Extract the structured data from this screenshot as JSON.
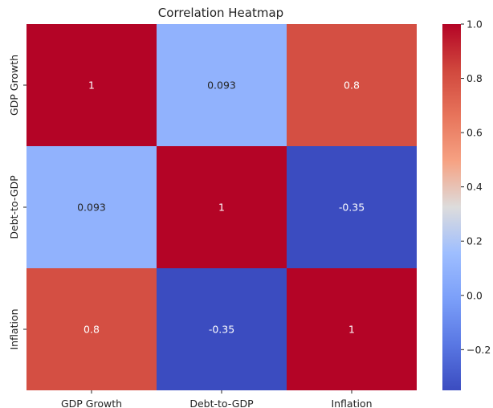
{
  "chart_data": {
    "type": "heatmap",
    "title": "Correlation Heatmap",
    "x_labels": [
      "GDP Growth",
      "Debt-to-GDP",
      "Inflation"
    ],
    "y_labels": [
      "GDP Growth",
      "Debt-to-GDP",
      "Inflation"
    ],
    "matrix": [
      [
        1,
        0.093,
        0.8
      ],
      [
        0.093,
        1,
        -0.35
      ],
      [
        0.8,
        -0.35,
        1
      ]
    ],
    "cell_text": [
      [
        "1",
        "0.093",
        "0.8"
      ],
      [
        "0.093",
        "1",
        "-0.35"
      ],
      [
        "0.8",
        "-0.35",
        "1"
      ]
    ],
    "colormap": "coolwarm",
    "colorbar": {
      "vmin": -0.35,
      "vmax": 1.0,
      "ticks": [
        1.0,
        0.8,
        0.6,
        0.4,
        0.2,
        0.0,
        -0.2
      ],
      "tick_labels": [
        "1.0",
        "0.8",
        "0.6",
        "0.4",
        "0.2",
        "0.0",
        "−0.2"
      ]
    }
  }
}
